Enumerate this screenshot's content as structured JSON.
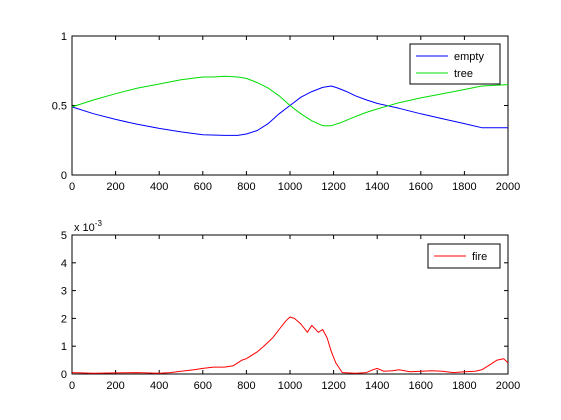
{
  "chart_data": [
    {
      "type": "line",
      "title": "",
      "xlabel": "",
      "ylabel": "",
      "xlim": [
        0,
        2000
      ],
      "ylim": [
        0,
        1
      ],
      "xticks": [
        0,
        200,
        400,
        600,
        800,
        1000,
        1200,
        1400,
        1600,
        1800,
        2000
      ],
      "yticks": [
        0,
        0.5,
        1
      ],
      "grid": false,
      "legend_position": "top-right",
      "series": [
        {
          "name": "empty",
          "color": "#0000ff",
          "x": [
            0,
            100,
            200,
            300,
            400,
            500,
            600,
            700,
            760,
            800,
            850,
            900,
            950,
            1000,
            1050,
            1100,
            1150,
            1190,
            1220,
            1260,
            1300,
            1350,
            1400,
            1500,
            1600,
            1700,
            1800,
            1880,
            2000
          ],
          "y": [
            0.49,
            0.44,
            0.4,
            0.365,
            0.335,
            0.31,
            0.29,
            0.285,
            0.285,
            0.295,
            0.32,
            0.37,
            0.44,
            0.5,
            0.56,
            0.6,
            0.63,
            0.64,
            0.625,
            0.6,
            0.57,
            0.54,
            0.515,
            0.48,
            0.44,
            0.405,
            0.37,
            0.34,
            0.34
          ]
        },
        {
          "name": "tree",
          "color": "#00dd00",
          "x": [
            0,
            100,
            200,
            300,
            400,
            500,
            600,
            650,
            700,
            760,
            800,
            850,
            900,
            950,
            1000,
            1050,
            1100,
            1150,
            1190,
            1230,
            1300,
            1350,
            1400,
            1500,
            1600,
            1700,
            1800,
            1880,
            2000
          ],
          "y": [
            0.49,
            0.54,
            0.585,
            0.625,
            0.655,
            0.685,
            0.705,
            0.705,
            0.71,
            0.705,
            0.695,
            0.665,
            0.625,
            0.57,
            0.5,
            0.44,
            0.39,
            0.355,
            0.355,
            0.375,
            0.42,
            0.45,
            0.475,
            0.52,
            0.555,
            0.585,
            0.615,
            0.64,
            0.65
          ]
        }
      ]
    },
    {
      "type": "line",
      "title": "",
      "xlabel": "",
      "ylabel": "",
      "y_scale_label": "x 10",
      "y_scale_exponent": "-3",
      "xlim": [
        0,
        2000
      ],
      "ylim": [
        0,
        5
      ],
      "xticks": [
        0,
        200,
        400,
        600,
        800,
        1000,
        1200,
        1400,
        1600,
        1800,
        2000
      ],
      "yticks": [
        0,
        1,
        2,
        3,
        4,
        5
      ],
      "grid": false,
      "legend_position": "top-right",
      "series": [
        {
          "name": "fire",
          "color": "#ff0000",
          "x": [
            0,
            100,
            200,
            300,
            400,
            450,
            500,
            560,
            600,
            650,
            700,
            740,
            780,
            800,
            850,
            880,
            920,
            950,
            980,
            1000,
            1020,
            1050,
            1080,
            1100,
            1130,
            1150,
            1170,
            1190,
            1210,
            1240,
            1300,
            1350,
            1380,
            1400,
            1430,
            1470,
            1500,
            1550,
            1600,
            1650,
            1700,
            1750,
            1800,
            1850,
            1880,
            1920,
            1950,
            1980,
            2000
          ],
          "y": [
            0.05,
            0.03,
            0.04,
            0.05,
            0.03,
            0.05,
            0.1,
            0.15,
            0.2,
            0.25,
            0.25,
            0.3,
            0.5,
            0.55,
            0.8,
            1.0,
            1.3,
            1.6,
            1.9,
            2.05,
            2.0,
            1.8,
            1.5,
            1.75,
            1.5,
            1.6,
            1.3,
            0.8,
            0.4,
            0.05,
            0.03,
            0.05,
            0.15,
            0.2,
            0.1,
            0.12,
            0.15,
            0.08,
            0.1,
            0.12,
            0.1,
            0.05,
            0.08,
            0.1,
            0.15,
            0.35,
            0.5,
            0.55,
            0.4
          ]
        }
      ]
    }
  ]
}
